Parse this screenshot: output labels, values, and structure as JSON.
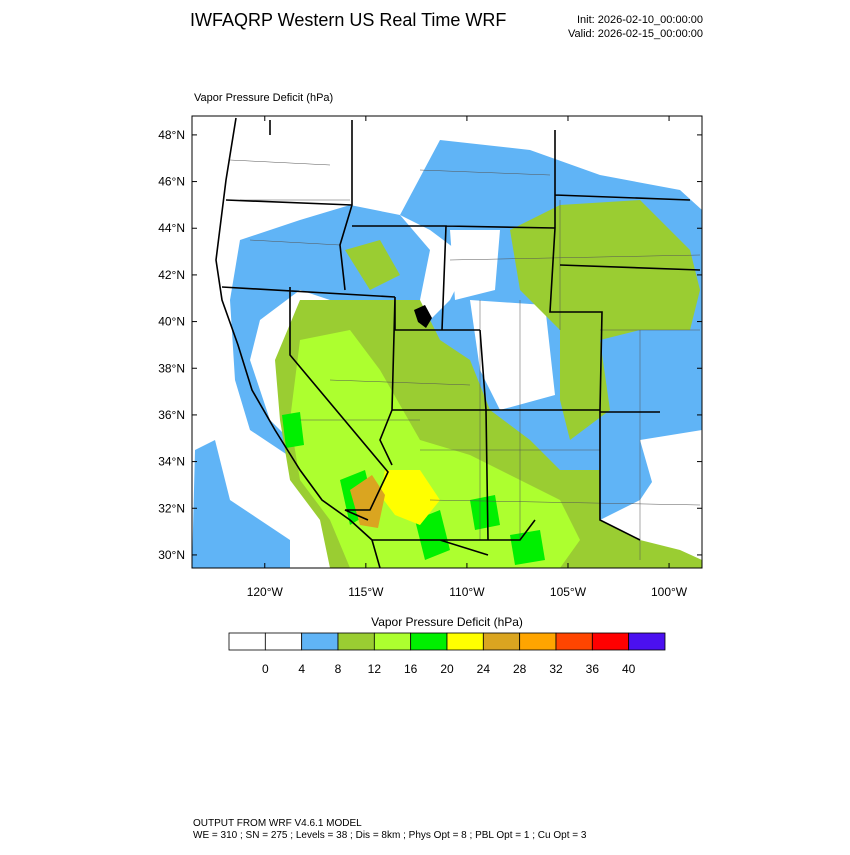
{
  "header": {
    "title": "IWFAQRP Western US Real Time WRF",
    "init": "Init: 2026-02-10_00:00:00",
    "valid": "Valid: 2026-02-15_00:00:00"
  },
  "map": {
    "subtitle": "Vapor Pressure Deficit   (hPa)",
    "latlim": [
      29.44,
      48.81
    ],
    "lonlim": [
      -123.6,
      -98.37
    ],
    "lat_ticks": [
      {
        "value": 30,
        "label": "30°N"
      },
      {
        "value": 32,
        "label": "32°N"
      },
      {
        "value": 34,
        "label": "34°N"
      },
      {
        "value": 36,
        "label": "36°N"
      },
      {
        "value": 38,
        "label": "38°N"
      },
      {
        "value": 40,
        "label": "40°N"
      },
      {
        "value": 42,
        "label": "42°N"
      },
      {
        "value": 44,
        "label": "44°N"
      },
      {
        "value": 46,
        "label": "46°N"
      },
      {
        "value": 48,
        "label": "48°N"
      }
    ],
    "lon_ticks": [
      {
        "value": -120,
        "label": "120°W"
      },
      {
        "value": -115,
        "label": "115°W"
      },
      {
        "value": -110,
        "label": "110°W"
      },
      {
        "value": -105,
        "label": "105°W"
      },
      {
        "value": -100,
        "label": "100°W"
      }
    ]
  },
  "colorbar": {
    "title": "Vapor Pressure Deficit  (hPa)",
    "levels": [
      0,
      4,
      8,
      12,
      16,
      20,
      24,
      28,
      32,
      36,
      40
    ],
    "colors": [
      "#ffffff",
      "#ffffff",
      "#60b4f6",
      "#9acd32",
      "#adff2f",
      "#00f000",
      "#ffff00",
      "#daa520",
      "#ffa500",
      "#ff4500",
      "#ff0000",
      "#4b10f0"
    ]
  },
  "footer": {
    "line1": "OUTPUT FROM WRF V4.6.1 MODEL",
    "line2": "WE = 310 ; SN = 275 ; Levels = 38 ; Dis = 8km ; Phys Opt = 8 ; PBL Opt = 1 ; Cu Opt = 3"
  }
}
